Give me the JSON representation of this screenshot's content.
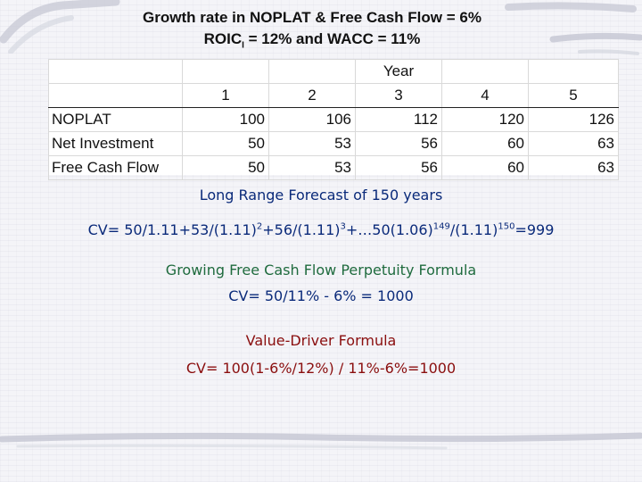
{
  "title": {
    "line1": "Growth rate in NOPLAT & Free Cash Flow = 6%",
    "line2_pre": "ROIC",
    "line2_sub": "I",
    "line2_post": " = 12%  and WACC = 11%"
  },
  "table": {
    "year_header": "Year",
    "years": [
      "1",
      "2",
      "3",
      "4",
      "5"
    ],
    "rows": [
      {
        "label": "NOPLAT",
        "values": [
          "100",
          "106",
          "112",
          "120",
          "126"
        ]
      },
      {
        "label": "Net Investment",
        "values": [
          "50",
          "53",
          "56",
          "60",
          "63"
        ]
      },
      {
        "label": "Free Cash Flow",
        "values": [
          "50",
          "53",
          "56",
          "60",
          "63"
        ]
      }
    ]
  },
  "forecast": {
    "heading": "Long Range Forecast of 150 years",
    "formula_p1": "CV= 50/1.11+53/(1.11)",
    "sup1": "2",
    "formula_p2": "+56/(1.11)",
    "sup2": "3",
    "formula_p3": "+…50(1.06)",
    "sup3": "149",
    "formula_p4": "/(1.11)",
    "sup4": "150",
    "formula_p5": "=999"
  },
  "perpetuity": {
    "heading": "Growing Free Cash Flow Perpetuity Formula",
    "formula": "CV= 50/11% - 6% = 1000"
  },
  "value_driver": {
    "heading": "Value-Driver Formula",
    "formula": "CV= 100(1-6%/12%) / 11%-6%=1000"
  },
  "colors": {
    "blue_text": "#0a2a7a",
    "green_text": "#1f6b3e",
    "red_text": "#8a0e0e"
  }
}
